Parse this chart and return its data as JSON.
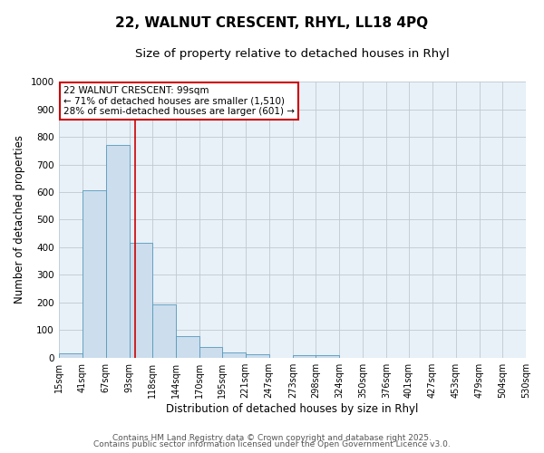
{
  "title1": "22, WALNUT CRESCENT, RHYL, LL18 4PQ",
  "title2": "Size of property relative to detached houses in Rhyl",
  "xlabel": "Distribution of detached houses by size in Rhyl",
  "ylabel": "Number of detached properties",
  "bar_edges": [
    15,
    41,
    67,
    93,
    118,
    144,
    170,
    195,
    221,
    247,
    273,
    298,
    324,
    350,
    376,
    401,
    427,
    453,
    479,
    504,
    530
  ],
  "bar_heights": [
    15,
    607,
    770,
    415,
    193,
    77,
    37,
    18,
    12,
    0,
    10,
    10,
    0,
    0,
    0,
    0,
    0,
    0,
    0,
    0
  ],
  "bar_color": "#ccdded",
  "bar_edge_color": "#5599bb",
  "property_size": 99,
  "red_line_color": "#cc0000",
  "annotation_line1": "22 WALNUT CRESCENT: 99sqm",
  "annotation_line2": "← 71% of detached houses are smaller (1,510)",
  "annotation_line3": "28% of semi-detached houses are larger (601) →",
  "annotation_box_color": "#ffffff",
  "annotation_border_color": "#cc0000",
  "ylim": [
    0,
    1000
  ],
  "yticks": [
    0,
    100,
    200,
    300,
    400,
    500,
    600,
    700,
    800,
    900,
    1000
  ],
  "tick_labels": [
    "15sqm",
    "41sqm",
    "67sqm",
    "93sqm",
    "118sqm",
    "144sqm",
    "170sqm",
    "195sqm",
    "221sqm",
    "247sqm",
    "273sqm",
    "298sqm",
    "324sqm",
    "350sqm",
    "376sqm",
    "401sqm",
    "427sqm",
    "453sqm",
    "479sqm",
    "504sqm",
    "530sqm"
  ],
  "footer1": "Contains HM Land Registry data © Crown copyright and database right 2025.",
  "footer2": "Contains public sector information licensed under the Open Government Licence v3.0.",
  "bg_color": "#ffffff",
  "plot_bg_color": "#e8f0f8",
  "grid_color": "#c0c8d0",
  "title_fontsize": 11,
  "subtitle_fontsize": 9.5,
  "axis_label_fontsize": 8.5,
  "tick_fontsize": 7,
  "footer_fontsize": 6.5,
  "annotation_fontsize": 7.5
}
